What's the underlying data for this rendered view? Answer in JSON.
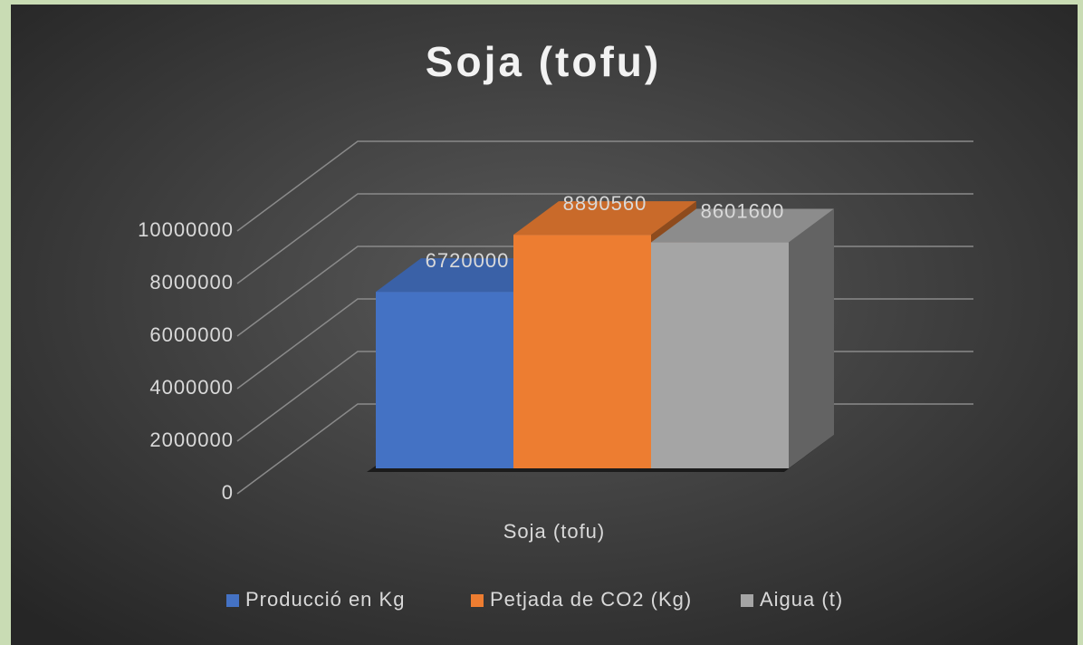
{
  "chart_data": {
    "type": "bar3d",
    "title": "Soja (tofu)",
    "categories": [
      "Soja (tofu)"
    ],
    "series": [
      {
        "name": "Producció en Kg",
        "color": "#4472c4",
        "values": [
          6720000
        ]
      },
      {
        "name": "Petjada de CO2 (Kg)",
        "color": "#ed7d31",
        "values": [
          8890560
        ]
      },
      {
        "name": "Aigua (t)",
        "color": "#a5a5a5",
        "values": [
          8601600
        ]
      }
    ],
    "ylim": [
      0,
      10000000
    ],
    "yticks": [
      0,
      2000000,
      4000000,
      6000000,
      8000000,
      10000000
    ],
    "grid": true,
    "legend": "bottom",
    "data_labels": true
  }
}
